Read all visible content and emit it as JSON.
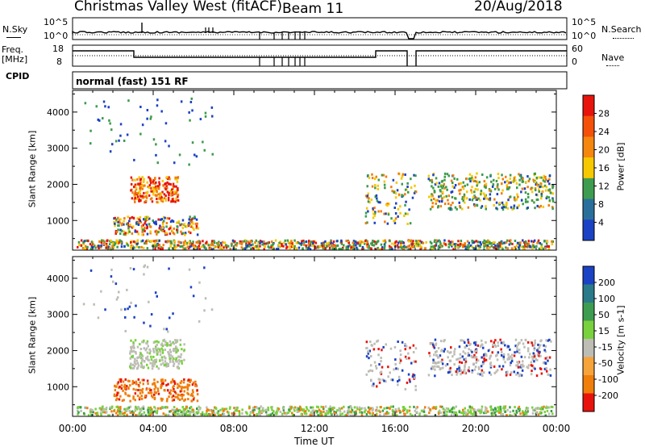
{
  "header": {
    "radar": "Christmas Valley West (fitACF)",
    "beam": "Beam 11",
    "date": "20/Aug/2018"
  },
  "left_labels": {
    "nsky": "N.Sky",
    "freq_line1": "Freq.",
    "freq_line2": "[MHz]",
    "cpid": "CPID"
  },
  "right_labels": {
    "nsearch": "N.Search",
    "nave": "Nave"
  },
  "noise_axis": {
    "top": "10^5",
    "bottom": "10^0",
    "right_top": "10^5",
    "right_bottom": "10^0"
  },
  "freq_axis": {
    "top": "18",
    "bottom": "8",
    "right_top": "60",
    "right_bottom": "0"
  },
  "cpid_text": "normal (fast) 151 RF",
  "colors": {
    "red": "#e8130c",
    "orange": "#f07e0a",
    "yellow": "#f6c800",
    "green": "#3b9c4a",
    "blue": "#1b42c4",
    "gray": "#bdbdb5",
    "lime": "#79d13d"
  },
  "chart_data": [
    {
      "type": "heatmap",
      "name": "power",
      "ylabel": "Slant Range [km]",
      "yticks": [
        "4000",
        "3000",
        "2000",
        "1000"
      ],
      "colorbar_label": "Power [dB]",
      "colorbar_ticks": [
        "28",
        "24",
        "20",
        "16",
        "12",
        "8",
        "4"
      ],
      "colorbar_colors": [
        "#e8130c",
        "#f4500a",
        "#f5860e",
        "#f6c800",
        "#3e9c50",
        "#2a6f9c",
        "#1b42c4"
      ],
      "ylim": [
        180,
        4600
      ],
      "xlim_hours": [
        0,
        24
      ]
    },
    {
      "type": "heatmap",
      "name": "velocity",
      "ylabel": "Slant Range [km]",
      "yticks": [
        "4000",
        "3000",
        "2000",
        "1000"
      ],
      "colorbar_label": "Velocity [m s-1]",
      "colorbar_ticks": [
        "200",
        "100",
        "50",
        "15",
        "-15",
        "-50",
        "-100",
        "-200"
      ],
      "colorbar_colors": [
        "#1b42c4",
        "#2a7a8a",
        "#3e9c50",
        "#79d13d",
        "#bdbdb5",
        "#f6a33a",
        "#f07e0a",
        "#e8130c"
      ],
      "ylim": [
        180,
        4600
      ],
      "xlim_hours": [
        0,
        24
      ]
    }
  ],
  "x_axis": {
    "ticks": [
      "00:00",
      "04:00",
      "08:00",
      "12:00",
      "16:00",
      "20:00",
      "00:00"
    ],
    "label": "Time UT"
  }
}
